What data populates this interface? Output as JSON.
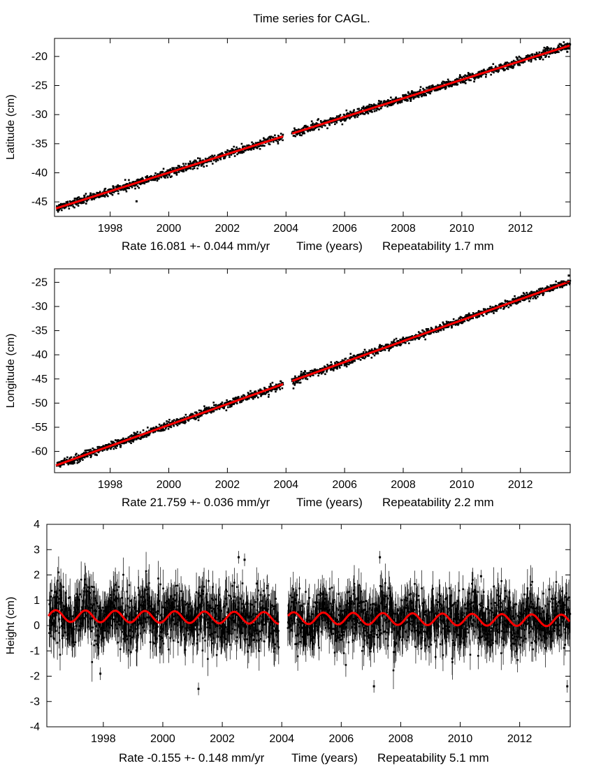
{
  "figure": {
    "title": "Time series for CAGL."
  },
  "chart_data": [
    {
      "type": "scatter",
      "station": "CAGL",
      "component": "latitude",
      "ylabel": "Latitude (cm)",
      "rate_text": "Rate 16.081 +- 0.044 mm/yr",
      "xlabel": "Time (years)",
      "repeatability_text": "Repeatability 1.7 mm",
      "xlim": [
        1996.1,
        2013.7
      ],
      "ylim": [
        -47.5,
        -16.9
      ],
      "xticks": [
        "1998",
        "2000",
        "2002",
        "2004",
        "2006",
        "2008",
        "2010",
        "2012"
      ],
      "yticks": [
        "-20",
        "-25",
        "-30",
        "-35",
        "-40",
        "-45"
      ],
      "data_gap": [
        2003.9,
        2004.2
      ],
      "model": {
        "start_value": -46.2,
        "end_value": -18.1,
        "annual_amplitude": 0
      },
      "noise_sd": 0.35,
      "outliers": [
        {
          "x": 1998.9,
          "y": -44.9
        },
        {
          "x": 2013.6,
          "y": -19.2
        }
      ]
    },
    {
      "type": "scatter",
      "station": "CAGL",
      "component": "longitude",
      "ylabel": "Longitude (cm)",
      "rate_text": "Rate 21.759 +- 0.036 mm/yr",
      "xlabel": "Time (years)",
      "repeatability_text": "Repeatability 2.2 mm",
      "xlim": [
        1996.1,
        2013.7
      ],
      "ylim": [
        -64.4,
        -22.2
      ],
      "xticks": [
        "1998",
        "2000",
        "2002",
        "2004",
        "2006",
        "2008",
        "2010",
        "2012"
      ],
      "yticks": [
        "-25",
        "-30",
        "-35",
        "-40",
        "-45",
        "-50",
        "-55",
        "-60"
      ],
      "data_gap": [
        2003.9,
        2004.2
      ],
      "model": {
        "start_value": -63.0,
        "end_value": -24.8,
        "annual_amplitude": 0
      },
      "noise_sd": 0.4,
      "outliers": [
        {
          "x": 2013.65,
          "y": -23.6
        }
      ]
    },
    {
      "type": "scatter",
      "station": "CAGL",
      "component": "height",
      "ylabel": "Height (cm)",
      "rate_text": "Rate -0.155 +- 0.148 mm/yr",
      "xlabel": "Time (years)",
      "repeatability_text": "Repeatability 5.1 mm",
      "xlim": [
        1996.1,
        2013.7
      ],
      "ylim": [
        -4,
        4
      ],
      "xticks": [
        "1998",
        "2000",
        "2002",
        "2004",
        "2006",
        "2008",
        "2010",
        "2012"
      ],
      "yticks": [
        "4",
        "3",
        "2",
        "1",
        "0",
        "-1",
        "-2",
        "-3",
        "-4"
      ],
      "data_gap": [
        2003.9,
        2004.2
      ],
      "model": {
        "start_value": 0.38,
        "end_value": 0.2,
        "annual_amplitude": 0.23
      },
      "noise_sd": 0.55,
      "error_bar": 0.6,
      "outliers": [
        {
          "x": 2002.75,
          "y": 2.6
        },
        {
          "x": 2002.55,
          "y": 2.7
        },
        {
          "x": 2007.3,
          "y": 2.7
        },
        {
          "x": 1997.9,
          "y": -1.9
        },
        {
          "x": 2001.2,
          "y": -2.5
        },
        {
          "x": 2007.1,
          "y": -2.4
        },
        {
          "x": 2013.6,
          "y": -2.4
        },
        {
          "x": 2010.7,
          "y": 1.95
        }
      ]
    }
  ]
}
